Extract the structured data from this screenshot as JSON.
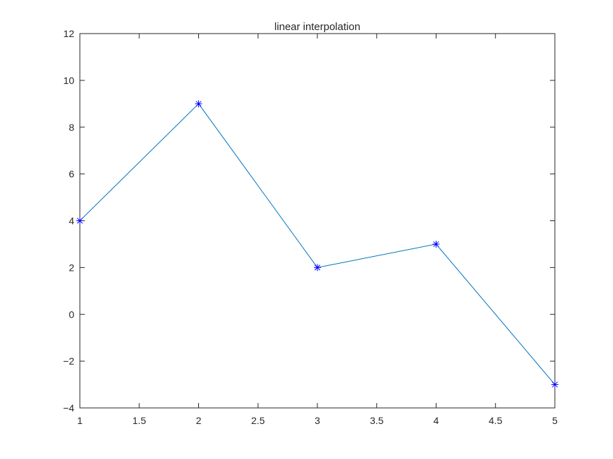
{
  "chart_data": {
    "type": "line",
    "title": "linear interpolation",
    "xlabel": "",
    "ylabel": "",
    "xlim": [
      1,
      5
    ],
    "ylim": [
      -4,
      12
    ],
    "x_ticks": [
      1,
      1.5,
      2,
      2.5,
      3,
      3.5,
      4,
      4.5,
      5
    ],
    "x_tick_labels": [
      "1",
      "1.5",
      "2",
      "2.5",
      "3",
      "3.5",
      "4",
      "4.5",
      "5"
    ],
    "y_ticks": [
      -4,
      -2,
      0,
      2,
      4,
      6,
      8,
      10,
      12
    ],
    "y_tick_labels": [
      "−4",
      "−2",
      "0",
      "2",
      "4",
      "6",
      "8",
      "10",
      "12"
    ],
    "grid": false,
    "series": [
      {
        "x": [
          1,
          2,
          3,
          4,
          5
        ],
        "y": [
          4,
          9,
          2,
          3,
          -3
        ],
        "line_color": "#0072BD",
        "marker": "asterisk",
        "marker_color": "#0000FF"
      }
    ]
  }
}
